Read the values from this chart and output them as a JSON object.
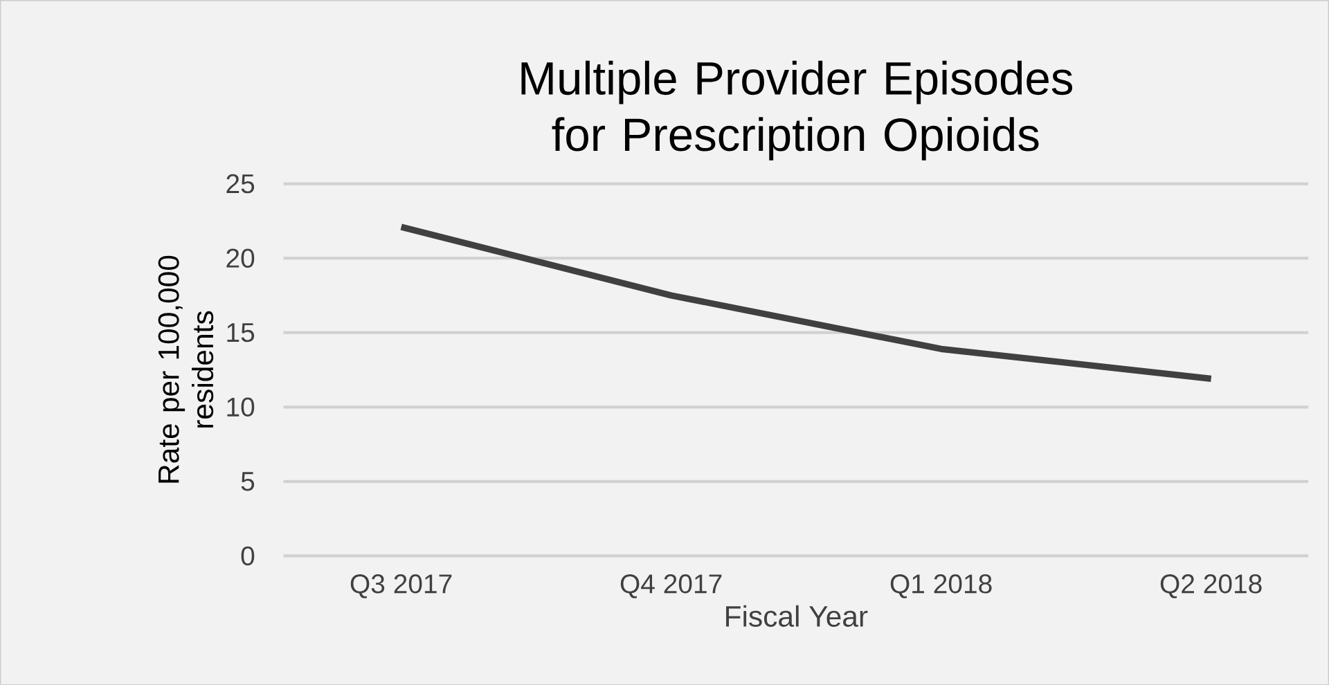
{
  "chart_data": {
    "type": "line",
    "title": "Multiple Provider Episodes for Prescription Opioids",
    "xlabel": "Fiscal Year",
    "ylabel": "Rate per 100,000 residents",
    "categories": [
      "Q3 2017",
      "Q4 2017",
      "Q1 2018",
      "Q2 2018"
    ],
    "series": [
      {
        "color": "#404040",
        "values": [
          22.1,
          17.5,
          13.9,
          11.9
        ]
      }
    ],
    "ylim": [
      0,
      25
    ],
    "yticks": [
      0,
      5,
      10,
      15,
      20,
      25
    ],
    "grid": "y",
    "marker": "none",
    "line_style": "solid"
  }
}
